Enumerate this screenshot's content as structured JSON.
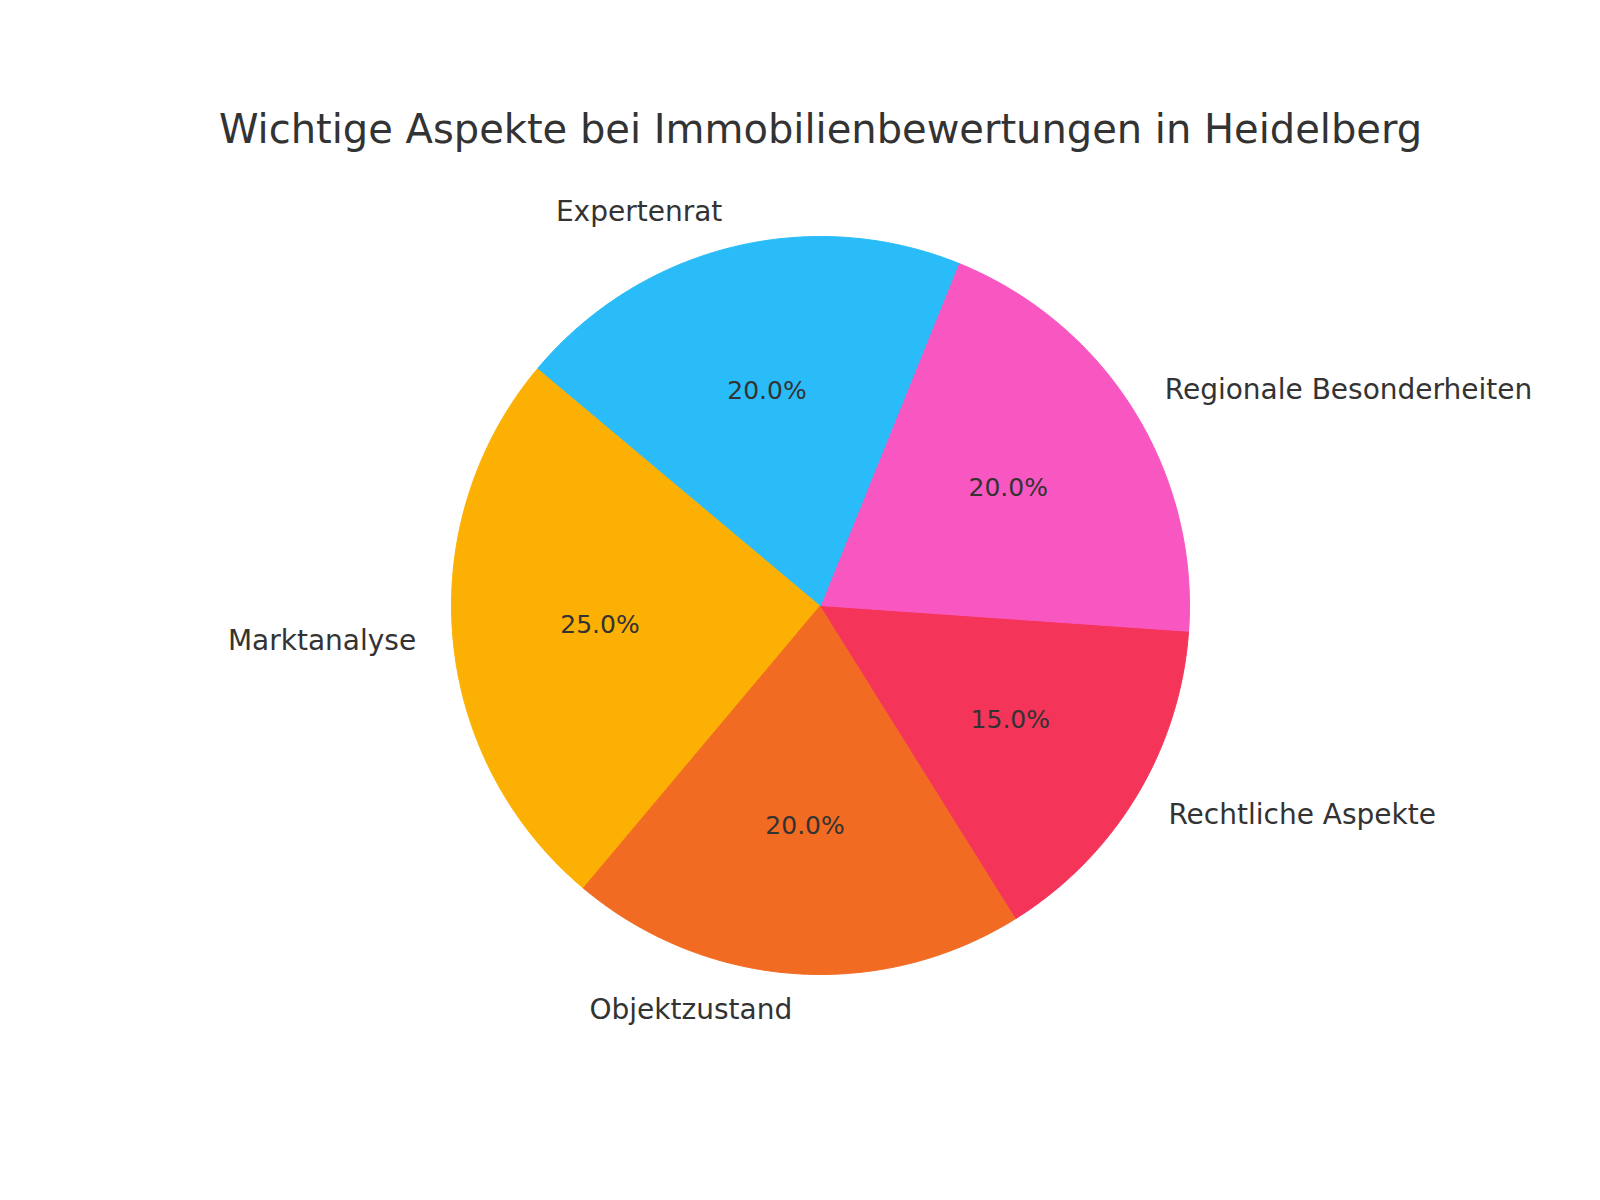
{
  "chart_data": {
    "type": "pie",
    "title": "Wichtige Aspekte bei Immobilienbewertungen in Heidelberg",
    "categories": [
      "Marktanalyse",
      "Objektzustand",
      "Rechtliche Aspekte",
      "Regionale Besonderheiten",
      "Expertenrat"
    ],
    "values": [
      25,
      20,
      15,
      20,
      20
    ],
    "value_labels": [
      "25.0%",
      "20.0%",
      "15.0%",
      "20.0%",
      "20.0%"
    ],
    "colors": [
      "#fdb004",
      "#f26b22",
      "#f5345a",
      "#f857c1",
      "#29bcf9"
    ],
    "data_labels": true
  }
}
